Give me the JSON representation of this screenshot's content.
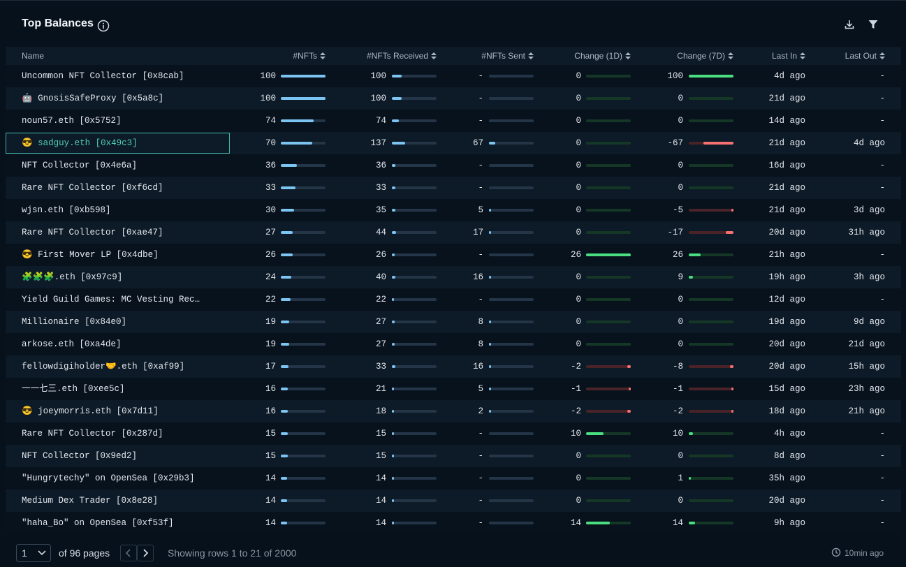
{
  "header": {
    "title": "Top Balances"
  },
  "table": {
    "columns": [
      "Name",
      "#NFTs",
      "#NFTs Received",
      "#NFTs Sent",
      "Change (1D)",
      "Change (7D)",
      "Last In",
      "Last Out"
    ],
    "rows": [
      [
        "Uncommon NFT Collector [0x8cab]",
        100,
        100,
        "-",
        0,
        100,
        "4d ago",
        "-"
      ],
      [
        "🤖 GnosisSafeProxy [0x5a8c]",
        100,
        100,
        "-",
        0,
        0,
        "21d ago",
        "-"
      ],
      [
        "noun57.eth [0x5752]",
        74,
        74,
        "-",
        0,
        0,
        "14d ago",
        "-"
      ],
      [
        "😎 sadguy.eth [0x49c3]",
        70,
        137,
        67,
        0,
        -67,
        "21d ago",
        "4d ago"
      ],
      [
        "NFT Collector [0x4e6a]",
        36,
        36,
        "-",
        0,
        0,
        "16d ago",
        "-"
      ],
      [
        "Rare NFT Collector [0xf6cd]",
        33,
        33,
        "-",
        0,
        0,
        "21d ago",
        "-"
      ],
      [
        "wjsn.eth [0xb598]",
        30,
        35,
        5,
        0,
        -5,
        "21d ago",
        "3d ago"
      ],
      [
        "Rare NFT Collector [0xae47]",
        27,
        44,
        17,
        0,
        -17,
        "20d ago",
        "31h ago"
      ],
      [
        "😎 First Mover LP [0x4dbe]",
        26,
        26,
        "-",
        26,
        26,
        "21h ago",
        "-"
      ],
      [
        "🧩🧩🧩.eth [0x97c9]",
        24,
        40,
        16,
        0,
        9,
        "19h ago",
        "3h ago"
      ],
      [
        "Yield Guild Games: MC Vesting Rec…",
        22,
        22,
        "-",
        0,
        0,
        "12d ago",
        "-"
      ],
      [
        "Millionaire [0x84e0]",
        19,
        27,
        8,
        0,
        0,
        "19d ago",
        "9d ago"
      ],
      [
        "arkose.eth [0xa4de]",
        19,
        27,
        8,
        0,
        0,
        "20d ago",
        "21d ago"
      ],
      [
        "fellowdigiholder🤝.eth [0xaf99]",
        17,
        33,
        16,
        -2,
        -8,
        "20d ago",
        "15h ago"
      ],
      [
        "一一七三.eth [0xee5c]",
        16,
        21,
        5,
        -1,
        -1,
        "15d ago",
        "23h ago"
      ],
      [
        "😎 joeymorris.eth [0x7d11]",
        16,
        18,
        2,
        -2,
        -2,
        "18d ago",
        "21h ago"
      ],
      [
        "Rare NFT Collector [0x287d]",
        15,
        15,
        "-",
        10,
        10,
        "4h ago",
        "-"
      ],
      [
        "NFT Collector [0x9ed2]",
        15,
        15,
        "-",
        0,
        0,
        "8d ago",
        "-"
      ],
      [
        "\"Hungrytechy\" on OpenSea [0x29b3]",
        14,
        14,
        "-",
        0,
        1,
        "35h ago",
        "-"
      ],
      [
        "Medium Dex Trader [0x8e28]",
        14,
        14,
        "-",
        0,
        0,
        "20d ago",
        "-"
      ],
      [
        "\"haha_Bo\" on OpenSea [0xf53f]",
        14,
        14,
        "-",
        14,
        14,
        "9h ago",
        "-"
      ]
    ]
  },
  "footer": {
    "page": "1",
    "pages_text": "of 96 pages",
    "rows_text": "Showing rows 1 to 21 of 2000",
    "updated": "10min ago"
  }
}
